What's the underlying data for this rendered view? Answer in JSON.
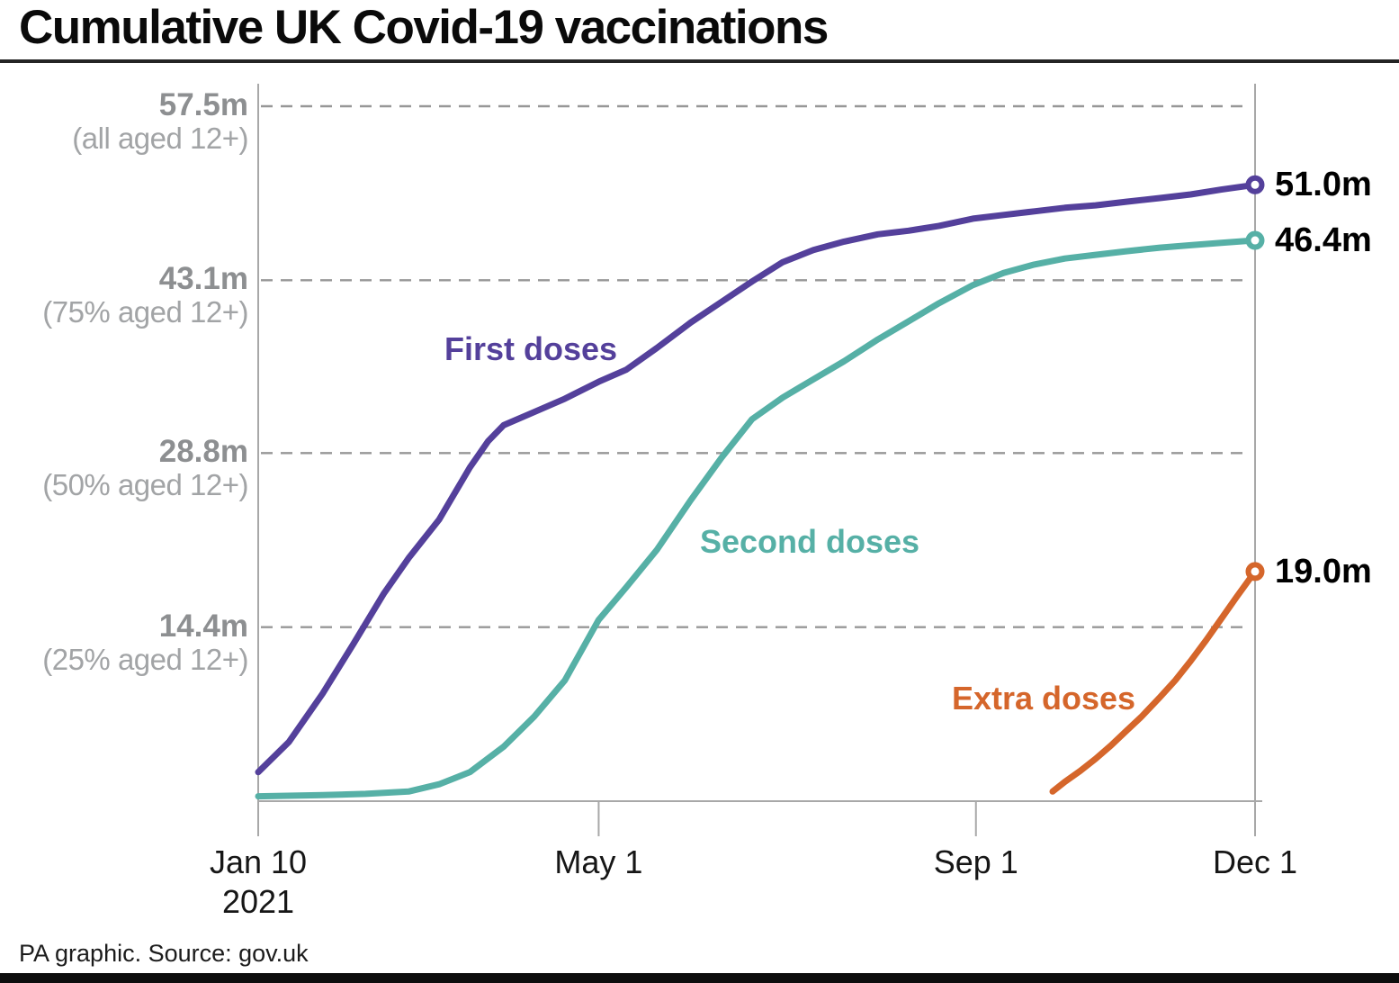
{
  "title": "Cumulative UK Covid-19 vaccinations",
  "footer": {
    "source_text": "PA graphic. Source: gov.uk"
  },
  "colors": {
    "first_doses": "#54409B",
    "second_doses": "#56B0A6",
    "extra_doses": "#D5662B",
    "gridline": "#979797",
    "axis": "#a8a8a8",
    "y_label_number": "#8d8f91",
    "y_label_sub": "#a2a4a6",
    "title_text": "#0a0a0a"
  },
  "chart_data": {
    "type": "line",
    "title": "Cumulative UK Covid-19 vaccinations",
    "unit": "millions of vaccine doses (cumulative)",
    "x_range": [
      "2021-01-10",
      "2021-12-01"
    ],
    "ylim": [
      0,
      57.5
    ],
    "grid": "horizontal dashed lines at labelled y values",
    "legend_position": "labels floated beside each line",
    "y_axis": [
      {
        "value": 57.5,
        "label": "57.5m",
        "sublabel": "(all aged 12+)"
      },
      {
        "value": 43.1,
        "label": "43.1m",
        "sublabel": "(75% aged 12+)"
      },
      {
        "value": 28.8,
        "label": "28.8m",
        "sublabel": "(50% aged 12+)"
      },
      {
        "value": 14.4,
        "label": "14.4m",
        "sublabel": "(25% aged 12+)"
      }
    ],
    "x_axis": [
      {
        "date": "2021-01-10",
        "label": "Jan 10",
        "sublabel": "2021"
      },
      {
        "date": "2021-05-01",
        "label": "May 1",
        "sublabel": ""
      },
      {
        "date": "2021-09-01",
        "label": "Sep 1",
        "sublabel": ""
      },
      {
        "date": "2021-12-01",
        "label": "Dec 1",
        "sublabel": ""
      }
    ],
    "series": [
      {
        "name": "First doses",
        "color": "#54409B",
        "end_label": "51.0m",
        "end_value": 51.0,
        "points": [
          [
            "2021-01-10",
            2.4
          ],
          [
            "2021-01-20",
            4.9
          ],
          [
            "2021-01-31",
            8.9
          ],
          [
            "2021-02-10",
            13.0
          ],
          [
            "2021-02-20",
            17.2
          ],
          [
            "2021-02-28",
            20.1
          ],
          [
            "2021-03-10",
            23.3
          ],
          [
            "2021-03-20",
            27.6
          ],
          [
            "2021-03-26",
            29.8
          ],
          [
            "2021-03-31",
            31.1
          ],
          [
            "2021-04-10",
            32.2
          ],
          [
            "2021-04-20",
            33.3
          ],
          [
            "2021-05-01",
            34.7
          ],
          [
            "2021-05-10",
            35.7
          ],
          [
            "2021-05-20",
            37.5
          ],
          [
            "2021-05-31",
            39.6
          ],
          [
            "2021-06-10",
            41.3
          ],
          [
            "2021-06-20",
            43.0
          ],
          [
            "2021-06-30",
            44.6
          ],
          [
            "2021-07-10",
            45.6
          ],
          [
            "2021-07-20",
            46.3
          ],
          [
            "2021-07-31",
            46.9
          ],
          [
            "2021-08-10",
            47.2
          ],
          [
            "2021-08-20",
            47.6
          ],
          [
            "2021-08-31",
            48.2
          ],
          [
            "2021-09-10",
            48.5
          ],
          [
            "2021-09-20",
            48.8
          ],
          [
            "2021-09-30",
            49.1
          ],
          [
            "2021-10-10",
            49.3
          ],
          [
            "2021-10-20",
            49.6
          ],
          [
            "2021-10-31",
            49.9
          ],
          [
            "2021-11-10",
            50.2
          ],
          [
            "2021-11-20",
            50.6
          ],
          [
            "2021-12-01",
            51.0
          ]
        ]
      },
      {
        "name": "Second doses",
        "color": "#56B0A6",
        "end_label": "46.4m",
        "end_value": 46.4,
        "points": [
          [
            "2021-01-10",
            0.4
          ],
          [
            "2021-01-31",
            0.5
          ],
          [
            "2021-02-14",
            0.6
          ],
          [
            "2021-02-28",
            0.8
          ],
          [
            "2021-03-10",
            1.4
          ],
          [
            "2021-03-20",
            2.4
          ],
          [
            "2021-03-31",
            4.5
          ],
          [
            "2021-04-10",
            7.0
          ],
          [
            "2021-04-20",
            10.0
          ],
          [
            "2021-05-01",
            15.0
          ],
          [
            "2021-05-10",
            17.7
          ],
          [
            "2021-05-20",
            20.8
          ],
          [
            "2021-05-31",
            24.9
          ],
          [
            "2021-06-10",
            28.4
          ],
          [
            "2021-06-20",
            31.6
          ],
          [
            "2021-06-30",
            33.4
          ],
          [
            "2021-07-10",
            34.9
          ],
          [
            "2021-07-20",
            36.4
          ],
          [
            "2021-07-31",
            38.2
          ],
          [
            "2021-08-10",
            39.7
          ],
          [
            "2021-08-20",
            41.2
          ],
          [
            "2021-08-31",
            42.7
          ],
          [
            "2021-09-10",
            43.7
          ],
          [
            "2021-09-20",
            44.4
          ],
          [
            "2021-09-30",
            44.9
          ],
          [
            "2021-10-10",
            45.2
          ],
          [
            "2021-10-20",
            45.5
          ],
          [
            "2021-10-31",
            45.8
          ],
          [
            "2021-11-10",
            46.0
          ],
          [
            "2021-11-20",
            46.2
          ],
          [
            "2021-12-01",
            46.4
          ]
        ]
      },
      {
        "name": "Extra doses",
        "color": "#D5662B",
        "end_label": "19.0m",
        "end_value": 19.0,
        "points": [
          [
            "2021-09-26",
            0.8
          ],
          [
            "2021-09-30",
            1.6
          ],
          [
            "2021-10-05",
            2.5
          ],
          [
            "2021-10-10",
            3.5
          ],
          [
            "2021-10-15",
            4.6
          ],
          [
            "2021-10-20",
            5.8
          ],
          [
            "2021-10-25",
            7.0
          ],
          [
            "2021-10-31",
            8.6
          ],
          [
            "2021-11-05",
            10.0
          ],
          [
            "2021-11-10",
            11.6
          ],
          [
            "2021-11-15",
            13.3
          ],
          [
            "2021-11-20",
            15.1
          ],
          [
            "2021-11-25",
            16.9
          ],
          [
            "2021-12-01",
            19.0
          ]
        ]
      }
    ]
  }
}
